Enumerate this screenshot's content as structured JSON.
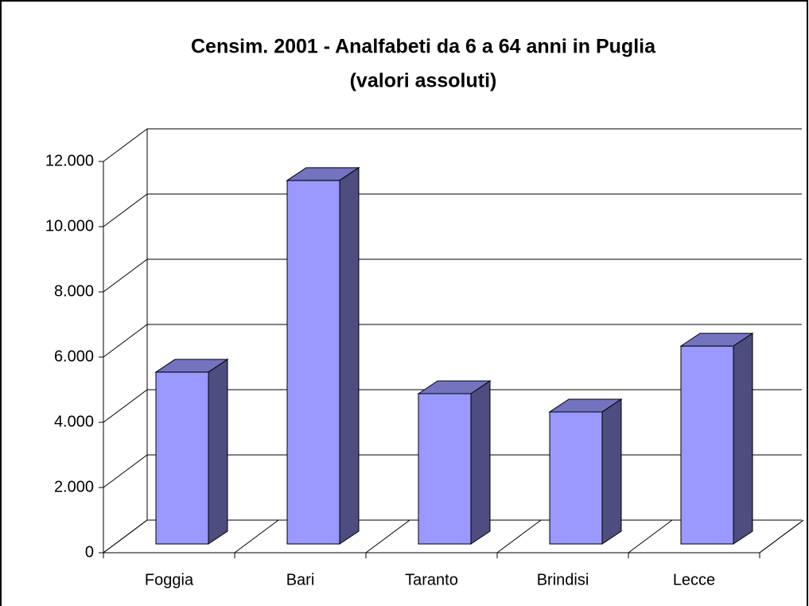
{
  "chart_data": {
    "type": "bar3d",
    "title": [
      "Censim. 2001 - Analfabeti da 6 a 64 anni in Puglia",
      "(valori assoluti)"
    ],
    "categories": [
      "Foggia",
      "Bari",
      "Taranto",
      "Brindisi",
      "Lecce"
    ],
    "values": [
      5270,
      11150,
      4610,
      4050,
      6070
    ],
    "color": "#9999ff",
    "ylim": [
      0,
      12000
    ],
    "yticks": [
      0,
      {
        "value": 2000,
        "label": "2.000"
      },
      {
        "value": 4000,
        "label": "4.000"
      },
      {
        "value": 6000,
        "label": "6.000"
      },
      {
        "value": 8000,
        "label": "8.000"
      },
      {
        "value": 10000,
        "label": "10.000"
      },
      {
        "value": 12000,
        "label": "12.000"
      }
    ],
    "grid": true
  }
}
